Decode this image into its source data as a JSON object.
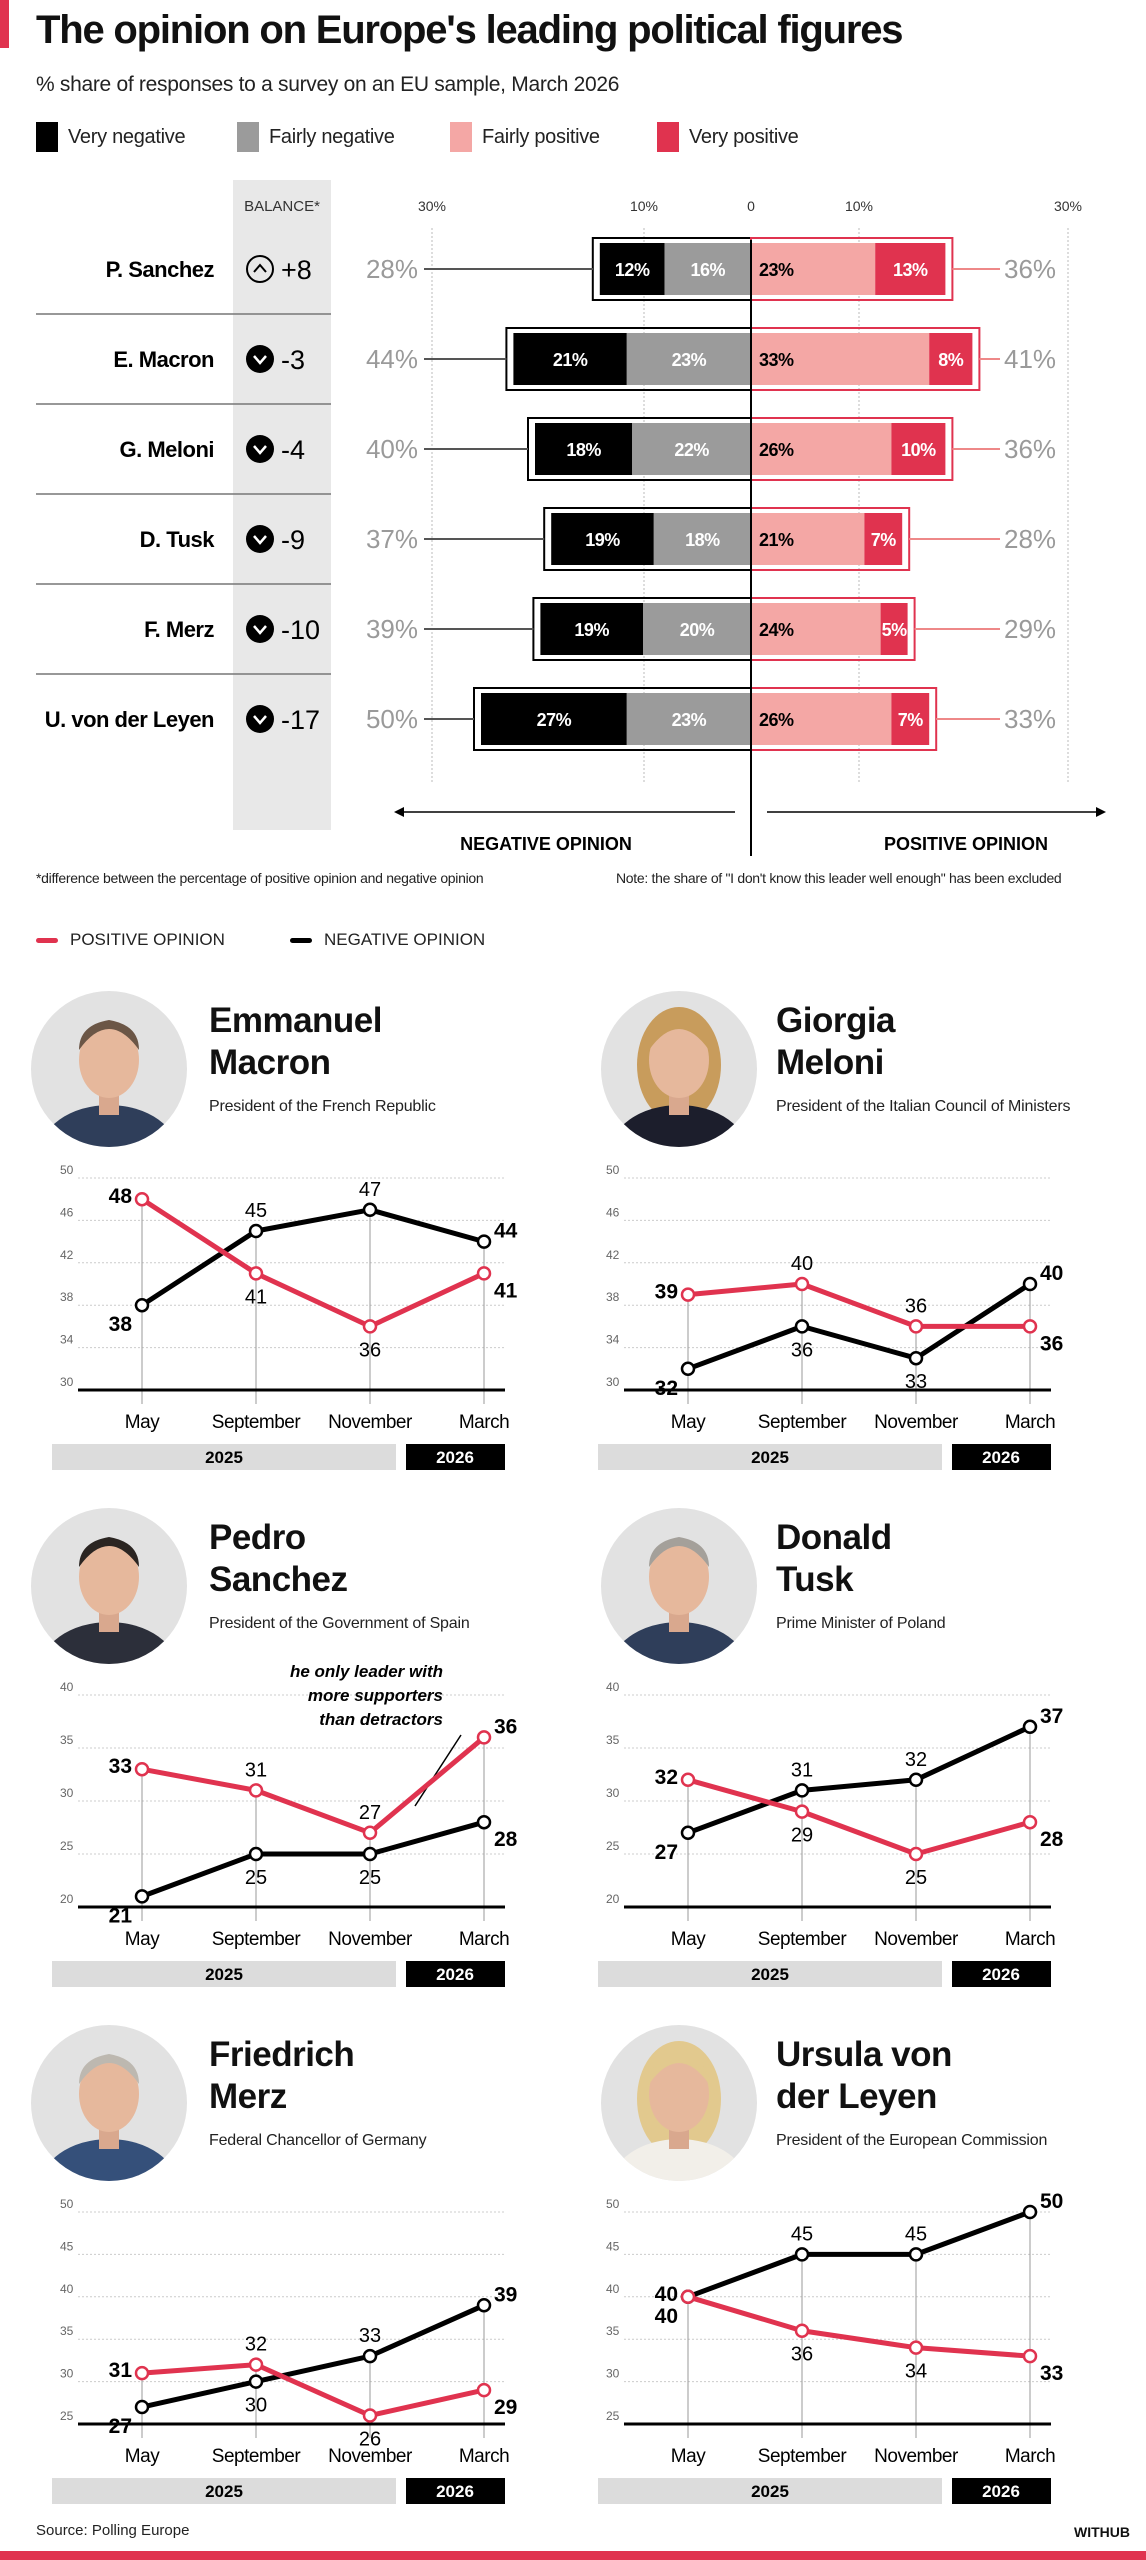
{
  "header": {
    "title": "The opinion on Europe's leading political figures",
    "subtitle": "% share of responses to a survey on an EU sample, March 2026"
  },
  "chart_data": [
    {
      "type": "bar",
      "subtype": "diverging-stacked",
      "legend": [
        {
          "label": "Very negative",
          "color": "#000000"
        },
        {
          "label": "Fairly negative",
          "color": "#9b9b9b"
        },
        {
          "label": "Fairly positive",
          "color": "#f4a7a5"
        },
        {
          "label": "Very positive",
          "color": "#e0334f"
        }
      ],
      "balance_header": "BALANCE*",
      "axis_tick_labels": [
        "30%",
        "10%",
        "0",
        "10%",
        "30%"
      ],
      "negative_label": "NEGATIVE OPINION",
      "positive_label": "POSITIVE OPINION",
      "rows": [
        {
          "name": "P. Sanchez",
          "balance": "+8",
          "direction": "up",
          "total_negative": "28%",
          "total_positive": "36%",
          "segments": [
            {
              "value": 12,
              "label": "12%"
            },
            {
              "value": 16,
              "label": "16%"
            },
            {
              "value": 23,
              "label": "23%"
            },
            {
              "value": 13,
              "label": "13%"
            }
          ]
        },
        {
          "name": "E. Macron",
          "balance": "-3",
          "direction": "down",
          "total_negative": "44%",
          "total_positive": "41%",
          "segments": [
            {
              "value": 21,
              "label": "21%"
            },
            {
              "value": 23,
              "label": "23%"
            },
            {
              "value": 33,
              "label": "33%"
            },
            {
              "value": 8,
              "label": "8%"
            }
          ]
        },
        {
          "name": "G. Meloni",
          "balance": "-4",
          "direction": "down",
          "total_negative": "40%",
          "total_positive": "36%",
          "segments": [
            {
              "value": 18,
              "label": "18%"
            },
            {
              "value": 22,
              "label": "22%"
            },
            {
              "value": 26,
              "label": "26%"
            },
            {
              "value": 10,
              "label": "10%"
            }
          ]
        },
        {
          "name": "D. Tusk",
          "balance": "-9",
          "direction": "down",
          "total_negative": "37%",
          "total_positive": "28%",
          "segments": [
            {
              "value": 19,
              "label": "19%"
            },
            {
              "value": 18,
              "label": "18%"
            },
            {
              "value": 21,
              "label": "21%"
            },
            {
              "value": 7,
              "label": "7%"
            }
          ]
        },
        {
          "name": "F. Merz",
          "balance": "-10",
          "direction": "down",
          "total_negative": "39%",
          "total_positive": "29%",
          "segments": [
            {
              "value": 19,
              "label": "19%"
            },
            {
              "value": 20,
              "label": "20%"
            },
            {
              "value": 24,
              "label": "24%"
            },
            {
              "value": 5,
              "label": "5%"
            }
          ]
        },
        {
          "name": "U. von der Leyen",
          "balance": "-17",
          "direction": "down",
          "total_negative": "50%",
          "total_positive": "33%",
          "segments": [
            {
              "value": 27,
              "label": "27%"
            },
            {
              "value": 23,
              "label": "23%"
            },
            {
              "value": 26,
              "label": "26%"
            },
            {
              "value": 7,
              "label": "7%"
            }
          ]
        }
      ],
      "footnote": "*difference between the percentage of positive opinion and negative opinion",
      "note": "Note: the share of \"I don't know this leader well enough\" has been excluded"
    },
    {
      "type": "line",
      "title_line1": "Emmanuel",
      "title_line2": "Macron",
      "subtitle": "President of the French Republic",
      "x": [
        "May",
        "September",
        "November",
        "March"
      ],
      "years": [
        "2025",
        "2026"
      ],
      "ylim": [
        30,
        50
      ],
      "yticks": [
        30,
        34,
        38,
        42,
        46,
        50
      ],
      "series": [
        {
          "name": "POSITIVE OPINION",
          "color": "#e0334f",
          "values": [
            48,
            41,
            36,
            41
          ]
        },
        {
          "name": "NEGATIVE OPINION",
          "color": "#000000",
          "values": [
            38,
            45,
            47,
            44
          ]
        }
      ]
    },
    {
      "type": "line",
      "title_line1": "Giorgia",
      "title_line2": "Meloni",
      "subtitle": "President of the Italian Council of Ministers",
      "x": [
        "May",
        "September",
        "November",
        "March"
      ],
      "years": [
        "2025",
        "2026"
      ],
      "ylim": [
        30,
        50
      ],
      "yticks": [
        30,
        34,
        38,
        42,
        46,
        50
      ],
      "series": [
        {
          "name": "POSITIVE OPINION",
          "color": "#e0334f",
          "values": [
            39,
            40,
            36,
            36
          ]
        },
        {
          "name": "NEGATIVE OPINION",
          "color": "#000000",
          "values": [
            32,
            36,
            33,
            40
          ]
        }
      ]
    },
    {
      "type": "line",
      "title_line1": "Pedro",
      "title_line2": "Sanchez",
      "subtitle": "President of the Government of Spain",
      "x": [
        "May",
        "September",
        "November",
        "March"
      ],
      "years": [
        "2025",
        "2026"
      ],
      "ylim": [
        20,
        40
      ],
      "yticks": [
        20,
        25,
        30,
        35,
        40
      ],
      "annotation": [
        "he only leader with",
        "more supporters",
        "than detractors"
      ],
      "series": [
        {
          "name": "POSITIVE OPINION",
          "color": "#e0334f",
          "values": [
            33,
            31,
            27,
            36
          ]
        },
        {
          "name": "NEGATIVE OPINION",
          "color": "#000000",
          "values": [
            21,
            25,
            25,
            28
          ]
        }
      ]
    },
    {
      "type": "line",
      "title_line1": "Donald",
      "title_line2": "Tusk",
      "subtitle": "Prime Minister of Poland",
      "x": [
        "May",
        "September",
        "November",
        "March"
      ],
      "years": [
        "2025",
        "2026"
      ],
      "ylim": [
        20,
        40
      ],
      "yticks": [
        20,
        25,
        30,
        35,
        40
      ],
      "series": [
        {
          "name": "POSITIVE OPINION",
          "color": "#e0334f",
          "values": [
            32,
            29,
            25,
            28
          ]
        },
        {
          "name": "NEGATIVE OPINION",
          "color": "#000000",
          "values": [
            27,
            31,
            32,
            37
          ]
        }
      ]
    },
    {
      "type": "line",
      "title_line1": "Friedrich",
      "title_line2": "Merz",
      "subtitle": "Federal Chancellor of Germany",
      "x": [
        "May",
        "September",
        "November",
        "March"
      ],
      "years": [
        "2025",
        "2026"
      ],
      "ylim": [
        25,
        50
      ],
      "yticks": [
        25,
        30,
        35,
        40,
        45,
        50
      ],
      "series": [
        {
          "name": "POSITIVE OPINION",
          "color": "#e0334f",
          "values": [
            31,
            32,
            26,
            29
          ]
        },
        {
          "name": "NEGATIVE OPINION",
          "color": "#000000",
          "values": [
            27,
            30,
            33,
            39
          ]
        }
      ]
    },
    {
      "type": "line",
      "title_line1": "Ursula von",
      "title_line2": "der Leyen",
      "subtitle": "President of the European Commission",
      "x": [
        "May",
        "September",
        "November",
        "March"
      ],
      "years": [
        "2025",
        "2026"
      ],
      "ylim": [
        25,
        50
      ],
      "yticks": [
        25,
        30,
        35,
        40,
        45,
        50
      ],
      "series": [
        {
          "name": "POSITIVE OPINION",
          "color": "#e0334f",
          "values": [
            40,
            36,
            34,
            33
          ]
        },
        {
          "name": "NEGATIVE OPINION",
          "color": "#000000",
          "values": [
            40,
            45,
            45,
            50
          ]
        }
      ]
    }
  ],
  "line_legend": [
    {
      "label": "POSITIVE OPINION",
      "color": "#e0334f"
    },
    {
      "label": "NEGATIVE OPINION",
      "color": "#000000"
    }
  ],
  "footer": {
    "source": "Source: Polling Europe",
    "brand": "WITHUB"
  }
}
